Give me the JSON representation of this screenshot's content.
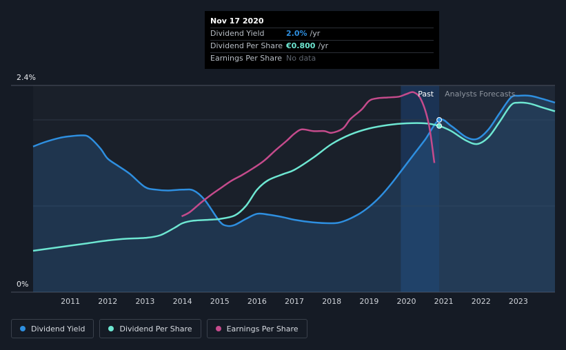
{
  "chart_data": {
    "type": "line",
    "title": "",
    "x_unit": "year",
    "xlim": [
      2010.0,
      2023.98
    ],
    "ylim": [
      0,
      2.4
    ],
    "y_axis_labels": [
      {
        "value": 2.4,
        "label": "2.4%"
      },
      {
        "value": 0,
        "label": "0%"
      }
    ],
    "x_ticks": [
      2011,
      2012,
      2013,
      2014,
      2015,
      2016,
      2017,
      2018,
      2019,
      2020,
      2021,
      2022,
      2023
    ],
    "x_tick_labels": [
      "2011",
      "2012",
      "2013",
      "2014",
      "2015",
      "2016",
      "2017",
      "2018",
      "2019",
      "2020",
      "2021",
      "2022",
      "2023"
    ],
    "gridlines": [
      2.4,
      2.0,
      1.0,
      0
    ],
    "regions": {
      "past_label": "Past",
      "forecast_label": "Analysts Forecasts",
      "divider_x": 2020.88,
      "highlight_start": 2019.85
    },
    "series": [
      {
        "name": "Dividend Yield",
        "color": "#2e8fe0",
        "filled": true,
        "x": [
          2010.0,
          2010.3,
          2010.7,
          2011.0,
          2011.3,
          2011.5,
          2011.8,
          2012.0,
          2012.3,
          2012.6,
          2013.0,
          2013.3,
          2013.6,
          2014.0,
          2014.3,
          2014.6,
          2015.0,
          2015.2,
          2015.4,
          2015.7,
          2016.0,
          2016.3,
          2016.7,
          2017.0,
          2017.5,
          2018.0,
          2018.3,
          2018.7,
          2019.0,
          2019.3,
          2019.6,
          2019.9,
          2020.2,
          2020.5,
          2020.88,
          2021.2,
          2021.6,
          2021.9,
          2022.2,
          2022.5,
          2022.8,
          2023.0,
          2023.3,
          2023.6,
          2023.98
        ],
        "y": [
          1.69,
          1.74,
          1.79,
          1.81,
          1.82,
          1.8,
          1.67,
          1.55,
          1.46,
          1.37,
          1.22,
          1.19,
          1.18,
          1.19,
          1.18,
          1.07,
          0.82,
          0.77,
          0.78,
          0.85,
          0.91,
          0.9,
          0.87,
          0.84,
          0.81,
          0.8,
          0.82,
          0.9,
          0.99,
          1.11,
          1.26,
          1.43,
          1.6,
          1.77,
          2.0,
          1.93,
          1.8,
          1.78,
          1.89,
          2.08,
          2.26,
          2.28,
          2.28,
          2.25,
          2.2
        ]
      },
      {
        "name": "Dividend Per Share",
        "color": "#6ee7d2",
        "filled": false,
        "x": [
          2010.0,
          2010.5,
          2011.0,
          2011.5,
          2012.0,
          2012.5,
          2013.0,
          2013.4,
          2013.8,
          2014.0,
          2014.3,
          2014.7,
          2015.0,
          2015.4,
          2015.7,
          2016.0,
          2016.3,
          2016.7,
          2017.0,
          2017.5,
          2018.0,
          2018.5,
          2019.0,
          2019.5,
          2020.0,
          2020.5,
          2020.88,
          2021.2,
          2021.6,
          2021.9,
          2022.2,
          2022.5,
          2022.8,
          2023.0,
          2023.3,
          2023.6,
          2023.98
        ],
        "y": [
          0.48,
          0.51,
          0.54,
          0.57,
          0.6,
          0.62,
          0.63,
          0.66,
          0.75,
          0.8,
          0.83,
          0.84,
          0.85,
          0.89,
          1.0,
          1.19,
          1.3,
          1.37,
          1.42,
          1.56,
          1.72,
          1.83,
          1.9,
          1.94,
          1.96,
          1.96,
          1.93,
          1.87,
          1.76,
          1.72,
          1.8,
          1.98,
          2.17,
          2.2,
          2.19,
          2.15,
          2.1
        ]
      },
      {
        "name": "Earnings Per Share",
        "color": "#c54b8c",
        "filled": false,
        "x": [
          2013.98,
          2014.2,
          2014.5,
          2014.8,
          2015.0,
          2015.3,
          2015.6,
          2015.9,
          2016.2,
          2016.5,
          2016.8,
          2017.0,
          2017.2,
          2017.5,
          2017.8,
          2018.0,
          2018.3,
          2018.5,
          2018.8,
          2019.0,
          2019.2,
          2019.5,
          2019.8,
          2020.0,
          2020.2,
          2020.4,
          2020.6,
          2020.75
        ],
        "y": [
          0.88,
          0.93,
          1.04,
          1.14,
          1.2,
          1.29,
          1.36,
          1.44,
          1.53,
          1.65,
          1.76,
          1.84,
          1.89,
          1.87,
          1.87,
          1.85,
          1.9,
          2.01,
          2.12,
          2.22,
          2.25,
          2.26,
          2.27,
          2.3,
          2.32,
          2.23,
          1.95,
          1.5
        ]
      }
    ]
  },
  "tooltip": {
    "date": "Nov 17 2020",
    "rows": [
      {
        "label": "Dividend Yield",
        "value": "2.0%",
        "unit": "/yr",
        "color": "#2e8fe0"
      },
      {
        "label": "Dividend Per Share",
        "value": "€0.800",
        "unit": "/yr",
        "color": "#6ee7d2"
      },
      {
        "label": "Earnings Per Share",
        "value": "No data",
        "unit": "",
        "color": "#5f6670"
      }
    ]
  },
  "legend": [
    {
      "label": "Dividend Yield",
      "color": "#2e8fe0"
    },
    {
      "label": "Dividend Per Share",
      "color": "#6ee7d2"
    },
    {
      "label": "Earnings Per Share",
      "color": "#c54b8c"
    }
  ]
}
